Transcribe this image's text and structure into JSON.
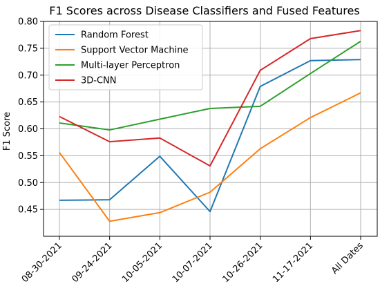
{
  "chart_data": {
    "type": "line",
    "title": "F1 Scores across Disease Classifiers and Fused Features",
    "xlabel": "",
    "ylabel": "F1 Score",
    "categories": [
      "08-30-2021",
      "09-24-2021",
      "10-05-2021",
      "10-07-2021",
      "10-26-2021",
      "11-17-2021",
      "All Dates"
    ],
    "ylim": [
      0.4,
      0.8
    ],
    "yticks": [
      0.45,
      0.5,
      0.55,
      0.6,
      0.65,
      0.7,
      0.75,
      0.8
    ],
    "ytick_labels": [
      "0.45",
      "0.50",
      "0.55",
      "0.60",
      "0.65",
      "0.70",
      "0.75",
      "0.80"
    ],
    "grid": true,
    "legend_position": "top-left",
    "series": [
      {
        "name": "Random Forest",
        "color": "#1f77b4",
        "values": [
          0.467,
          0.468,
          0.549,
          0.446,
          0.679,
          0.727,
          0.729
        ]
      },
      {
        "name": "Support Vector Machine",
        "color": "#ff7f0e",
        "values": [
          0.556,
          0.428,
          0.444,
          0.482,
          0.563,
          0.621,
          0.667
        ]
      },
      {
        "name": "Multi-layer Perceptron",
        "color": "#2ca02c",
        "values": [
          0.611,
          0.598,
          0.618,
          0.638,
          0.642,
          0.703,
          0.763
        ]
      },
      {
        "name": "3D-CNN",
        "color": "#d62728",
        "values": [
          0.623,
          0.576,
          0.583,
          0.531,
          0.709,
          0.768,
          0.783
        ]
      }
    ]
  }
}
